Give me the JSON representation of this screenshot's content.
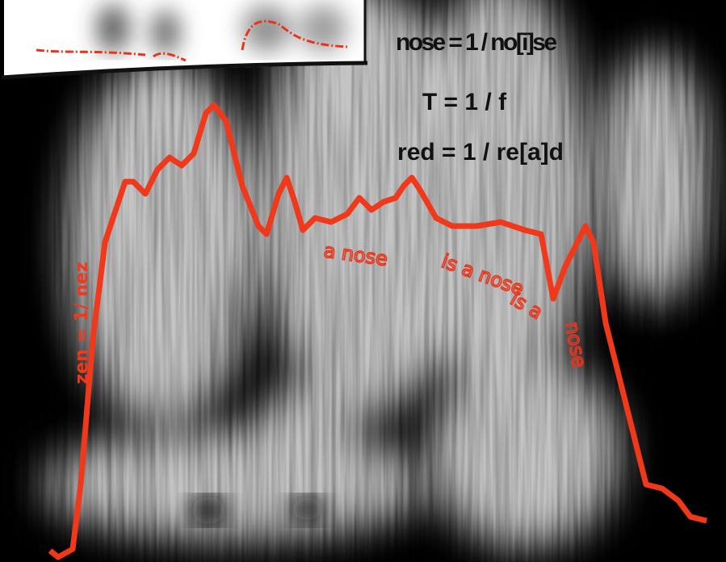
{
  "annotations": {
    "nose": "nose = 1 / no[i]se",
    "period": "T = 1 / f",
    "red": "red = 1 / re[a]d",
    "zen": "zen = 1/ nez",
    "scrawl": [
      "a nose",
      "is a nose",
      "is a",
      "nose"
    ]
  }
}
